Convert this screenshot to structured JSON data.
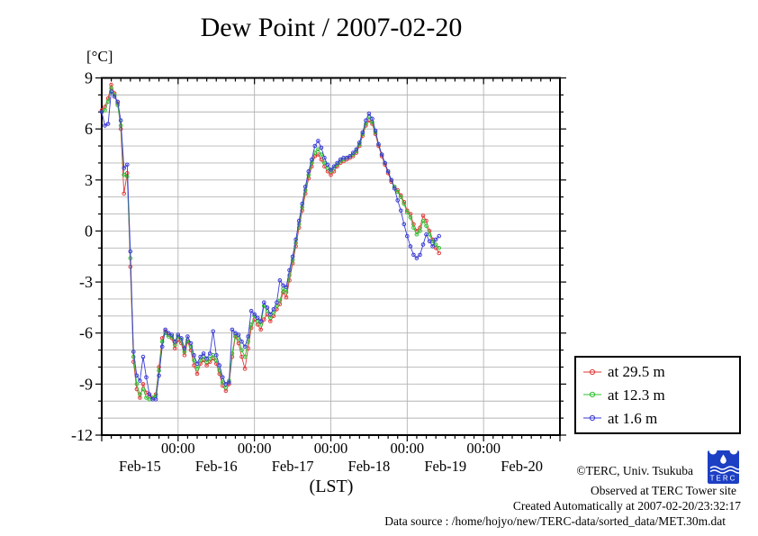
{
  "chart_data": {
    "type": "line",
    "title": "Dew Point / 2007-02-20",
    "y_unit_label": "[°C]",
    "xlabel": "(LST)",
    "ylim": [
      -12,
      9
    ],
    "y_ticks": [
      9,
      6,
      3,
      0,
      -3,
      -6,
      -9,
      -12
    ],
    "x_day_labels": [
      "Feb-15",
      "Feb-16",
      "Feb-17",
      "Feb-18",
      "Feb-19",
      "Feb-20"
    ],
    "x_midnight_labels": [
      "00:00",
      "00:00",
      "00:00",
      "00:00",
      "00:00"
    ],
    "x_total_days": 6,
    "x_start": "2007-02-15 00:00",
    "x_step_hours": 1,
    "grid": true,
    "legend_position": "outside-right-bottom",
    "colors": {
      "grid": "#b4b4b4",
      "axis": "#000000",
      "background": "#ffffff"
    },
    "series": [
      {
        "name": "at 29.5 m",
        "color": "#e03a3a",
        "values": [
          7.1,
          7.3,
          7.8,
          8.6,
          8.1,
          7.5,
          6.0,
          2.2,
          3.4,
          -2.1,
          -7.7,
          -9.3,
          -9.8,
          -9.0,
          -9.5,
          -9.7,
          -9.8,
          -9.6,
          -8.0,
          -6.3,
          -5.9,
          -6.1,
          -6.3,
          -6.9,
          -6.4,
          -6.6,
          -7.3,
          -6.5,
          -7.0,
          -7.9,
          -8.4,
          -7.8,
          -7.6,
          -7.9,
          -7.7,
          -7.5,
          -7.8,
          -8.4,
          -9.1,
          -9.4,
          -9.0,
          -7.4,
          -6.2,
          -6.6,
          -7.4,
          -8.1,
          -6.9,
          -5.7,
          -5.2,
          -5.5,
          -5.8,
          -5.2,
          -4.9,
          -5.3,
          -5.0,
          -4.6,
          -4.3,
          -3.6,
          -3.9,
          -2.9,
          -1.9,
          -0.9,
          0.2,
          1.2,
          2.2,
          3.1,
          3.8,
          4.4,
          4.5,
          4.2,
          3.8,
          3.5,
          3.3,
          3.5,
          3.8,
          4.0,
          4.1,
          4.2,
          4.3,
          4.4,
          4.6,
          5.0,
          5.6,
          6.2,
          6.5,
          6.3,
          5.7,
          5.0,
          4.4,
          3.9,
          3.4,
          2.9,
          2.6,
          2.4,
          2.1,
          1.7,
          1.2,
          1.0,
          0.4,
          0.0,
          0.2,
          0.9,
          0.6,
          0.0,
          -0.5,
          -1.0,
          -1.3
        ]
      },
      {
        "name": "at 12.3 m",
        "color": "#2fbf2f",
        "values": [
          7.0,
          7.1,
          7.6,
          8.4,
          8.0,
          7.4,
          6.2,
          3.3,
          3.2,
          -1.6,
          -7.4,
          -9.0,
          -9.6,
          -9.3,
          -9.8,
          -9.9,
          -9.8,
          -9.7,
          -8.2,
          -6.5,
          -6.0,
          -6.2,
          -6.2,
          -6.7,
          -6.2,
          -6.4,
          -7.1,
          -6.4,
          -6.8,
          -7.6,
          -8.1,
          -7.6,
          -7.4,
          -7.7,
          -7.5,
          -7.3,
          -7.6,
          -8.2,
          -8.9,
          -9.2,
          -8.8,
          -7.2,
          -6.1,
          -6.3,
          -7.0,
          -7.4,
          -6.5,
          -5.5,
          -5.0,
          -5.3,
          -5.5,
          -4.4,
          -4.7,
          -5.1,
          -4.8,
          -4.4,
          -4.1,
          -3.4,
          -3.6,
          -2.6,
          -1.7,
          -0.7,
          0.4,
          1.4,
          2.4,
          3.3,
          4.0,
          4.6,
          4.8,
          4.5,
          4.0,
          3.7,
          3.5,
          3.7,
          3.9,
          4.1,
          4.2,
          4.3,
          4.4,
          4.5,
          4.7,
          5.1,
          5.7,
          6.3,
          6.7,
          6.4,
          5.8,
          5.1,
          4.5,
          4.0,
          3.5,
          3.0,
          2.6,
          2.3,
          2.0,
          1.6,
          1.1,
          0.8,
          0.2,
          -0.2,
          0.0,
          0.6,
          0.3,
          -0.2,
          -0.6,
          -0.8,
          -1.0
        ]
      },
      {
        "name": "at 1.6 m",
        "color": "#3a3ad6",
        "values": [
          7.0,
          6.2,
          6.3,
          8.2,
          7.9,
          7.6,
          6.5,
          3.7,
          3.9,
          -1.2,
          -7.1,
          -8.5,
          -8.8,
          -7.4,
          -8.6,
          -9.6,
          -9.9,
          -9.9,
          -8.5,
          -6.8,
          -5.8,
          -6.0,
          -6.1,
          -6.5,
          -6.1,
          -6.3,
          -6.9,
          -6.2,
          -6.6,
          -7.3,
          -7.8,
          -7.4,
          -7.2,
          -7.5,
          -7.2,
          -5.9,
          -7.3,
          -7.9,
          -8.6,
          -9.0,
          -8.9,
          -5.8,
          -6.0,
          -6.1,
          -6.5,
          -6.8,
          -6.2,
          -4.7,
          -4.9,
          -5.1,
          -5.3,
          -4.2,
          -4.5,
          -4.9,
          -4.6,
          -4.2,
          -2.9,
          -3.2,
          -3.3,
          -2.3,
          -1.5,
          -0.5,
          0.6,
          1.6,
          2.6,
          3.5,
          4.2,
          5.0,
          5.3,
          4.9,
          4.3,
          3.9,
          3.6,
          3.8,
          4.0,
          4.2,
          4.3,
          4.3,
          4.4,
          4.6,
          4.8,
          5.2,
          5.8,
          6.5,
          6.9,
          6.6,
          5.9,
          5.1,
          4.5,
          4.0,
          3.5,
          3.0,
          2.5,
          1.8,
          1.2,
          0.4,
          -0.3,
          -0.9,
          -1.4,
          -1.6,
          -1.4,
          -0.8,
          -0.2,
          -0.6,
          -0.9,
          -0.5,
          -0.3
        ]
      }
    ]
  },
  "credits": {
    "copyright": "©TERC, Univ. Tsukuba",
    "observed": "Observed at TERC Tower site",
    "created": "Created Automatically at 2007-02-20/23:32:17",
    "source": "Data source : /home/hojyo/new/TERC-data/sorted_data/MET.30m.dat",
    "logo_text": "TERC"
  }
}
